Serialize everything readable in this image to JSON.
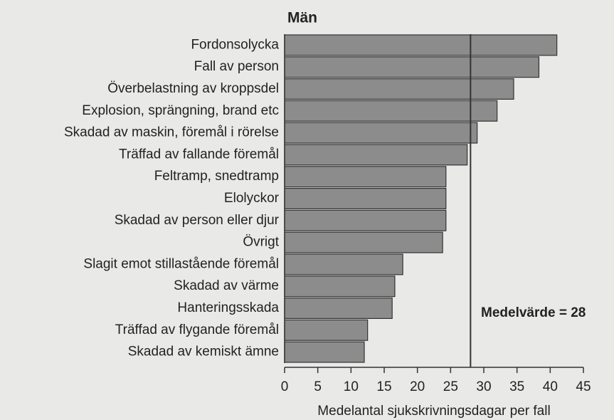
{
  "chart_data": {
    "type": "bar",
    "orientation": "horizontal",
    "title": "Män",
    "xlabel": "Medelantal sjukskrivningsdagar per fall",
    "categories": [
      "Fordonsolycka",
      "Fall av person",
      "Överbelastning av kroppsdel",
      "Explosion, sprängning, brand etc",
      "Skadad av maskin, föremål i rörelse",
      "Träffad av fallande föremål",
      "Feltramp, snedtramp",
      "Elolyckor",
      "Skadad av person eller djur",
      "Övrigt",
      "Slagit emot stillastående föremål",
      "Skadad av värme",
      "Hanteringsskada",
      "Träffad av flygande föremål",
      "Skadad av kemiskt ämne"
    ],
    "values": [
      41,
      38.3,
      34.5,
      32,
      29,
      27.5,
      24.3,
      24.3,
      24.3,
      23.8,
      17.8,
      16.6,
      16.2,
      12.5,
      12
    ],
    "color": "#8c8c8c",
    "xlim": [
      0,
      45
    ],
    "xticks": [
      0,
      5,
      10,
      15,
      20,
      25,
      30,
      35,
      40,
      45
    ],
    "mean": 28,
    "mean_label": "Medelvärde = 28"
  }
}
